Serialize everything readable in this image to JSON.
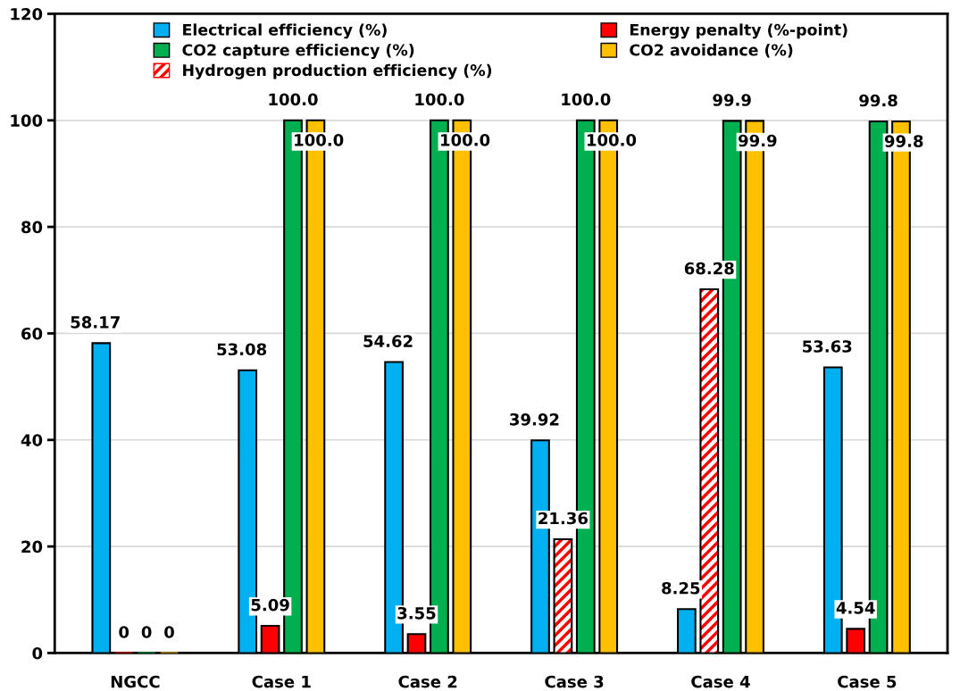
{
  "chart_data": {
    "type": "bar",
    "categories": [
      "NGCC",
      "Case 1",
      "Case 2",
      "Case 3",
      "Case 4",
      "Case 5"
    ],
    "series": [
      {
        "name": "Electrical efficiency (%)",
        "color": "#00b0f0",
        "values": [
          58.17,
          53.08,
          54.62,
          39.92,
          8.25,
          53.63
        ],
        "value_labels": [
          "58.17",
          "53.08",
          "54.62",
          "39.92",
          "8.25",
          "53.63"
        ]
      },
      {
        "name": "Energy penalty (%-point)",
        "color": "#ff0000",
        "values": [
          0,
          5.09,
          3.55,
          null,
          null,
          4.54
        ],
        "value_labels": [
          "0",
          "5.09",
          "3.55",
          null,
          null,
          "4.54"
        ]
      },
      {
        "name": "CO2 capture efficiency (%)",
        "color": "#00b050",
        "values": [
          0,
          100.0,
          100.0,
          100.0,
          99.9,
          99.8
        ],
        "value_labels": [
          "0",
          "100.0",
          "100.0",
          "100.0",
          "99.9",
          "99.8"
        ]
      },
      {
        "name": "CO2 avoidance (%)",
        "color": "#ffc000",
        "values": [
          0,
          100.0,
          100.0,
          100.0,
          99.9,
          99.8
        ],
        "value_labels": [
          "0",
          "100.0",
          "100.0",
          "100.0",
          "99.9",
          "99.8"
        ]
      },
      {
        "name": "Hydrogen production efficiency (%)",
        "color": "#ff0000",
        "values": [
          null,
          null,
          null,
          21.36,
          68.28,
          null
        ],
        "value_labels": [
          null,
          null,
          null,
          "21.36",
          "68.28",
          null
        ]
      }
    ],
    "ylim": [
      0,
      120
    ],
    "yticks": [
      0,
      20,
      40,
      60,
      80,
      100,
      120
    ],
    "grid": "y",
    "legend": "top"
  }
}
